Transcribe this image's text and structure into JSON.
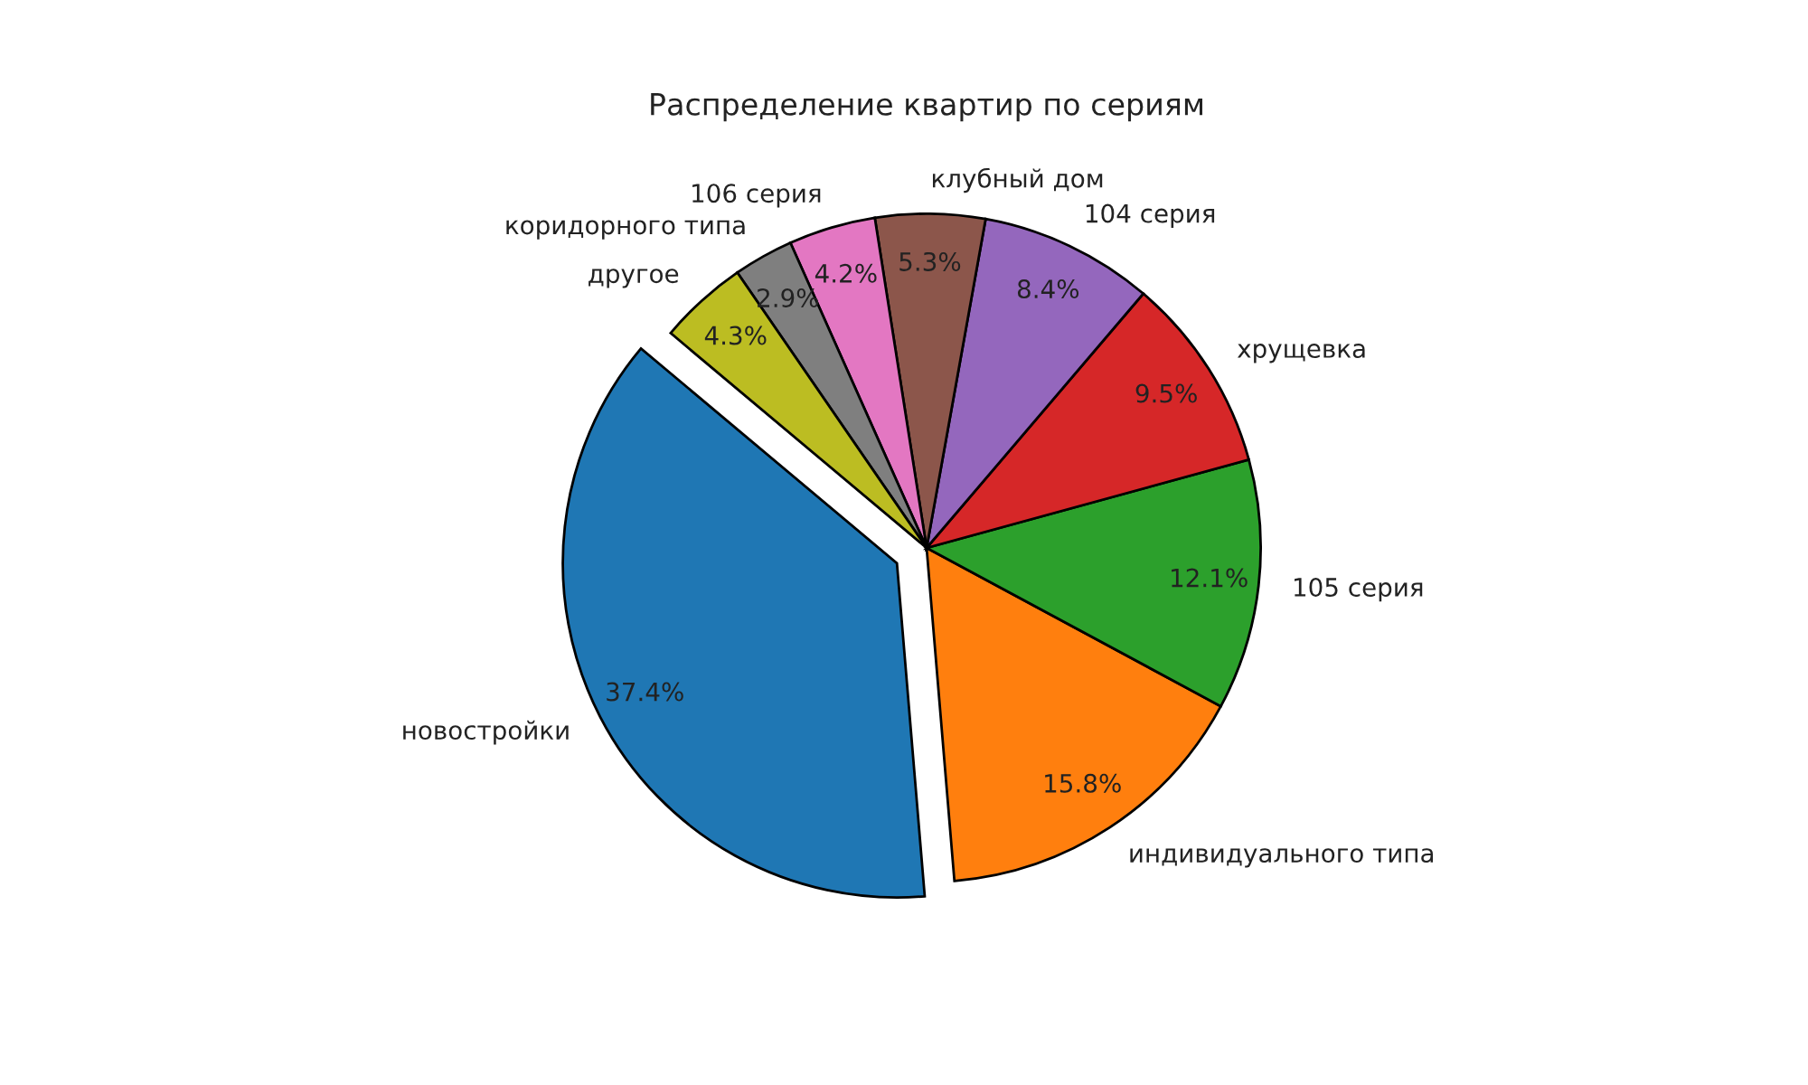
{
  "chart_data": {
    "type": "pie",
    "title": "Распределение квартир по сериям",
    "categories": [
      "новостройки",
      "индивидуального типа",
      "105 серия",
      "хрущевка",
      "104 серия",
      "клубный дом",
      "106 серия",
      "коридорного типа",
      "другое"
    ],
    "values": [
      37.4,
      15.8,
      12.1,
      9.5,
      8.4,
      5.3,
      4.2,
      2.9,
      4.3
    ],
    "value_labels": [
      "37.4%",
      "15.8%",
      "12.1%",
      "9.5%",
      "8.4%",
      "5.3%",
      "4.2%",
      "2.9%",
      "4.3%"
    ],
    "colors": [
      "#1f77b4",
      "#ff7f0e",
      "#2ca02c",
      "#d62728",
      "#9467bd",
      "#8c564b",
      "#e377c2",
      "#7f7f7f",
      "#bcbd22"
    ]
  }
}
